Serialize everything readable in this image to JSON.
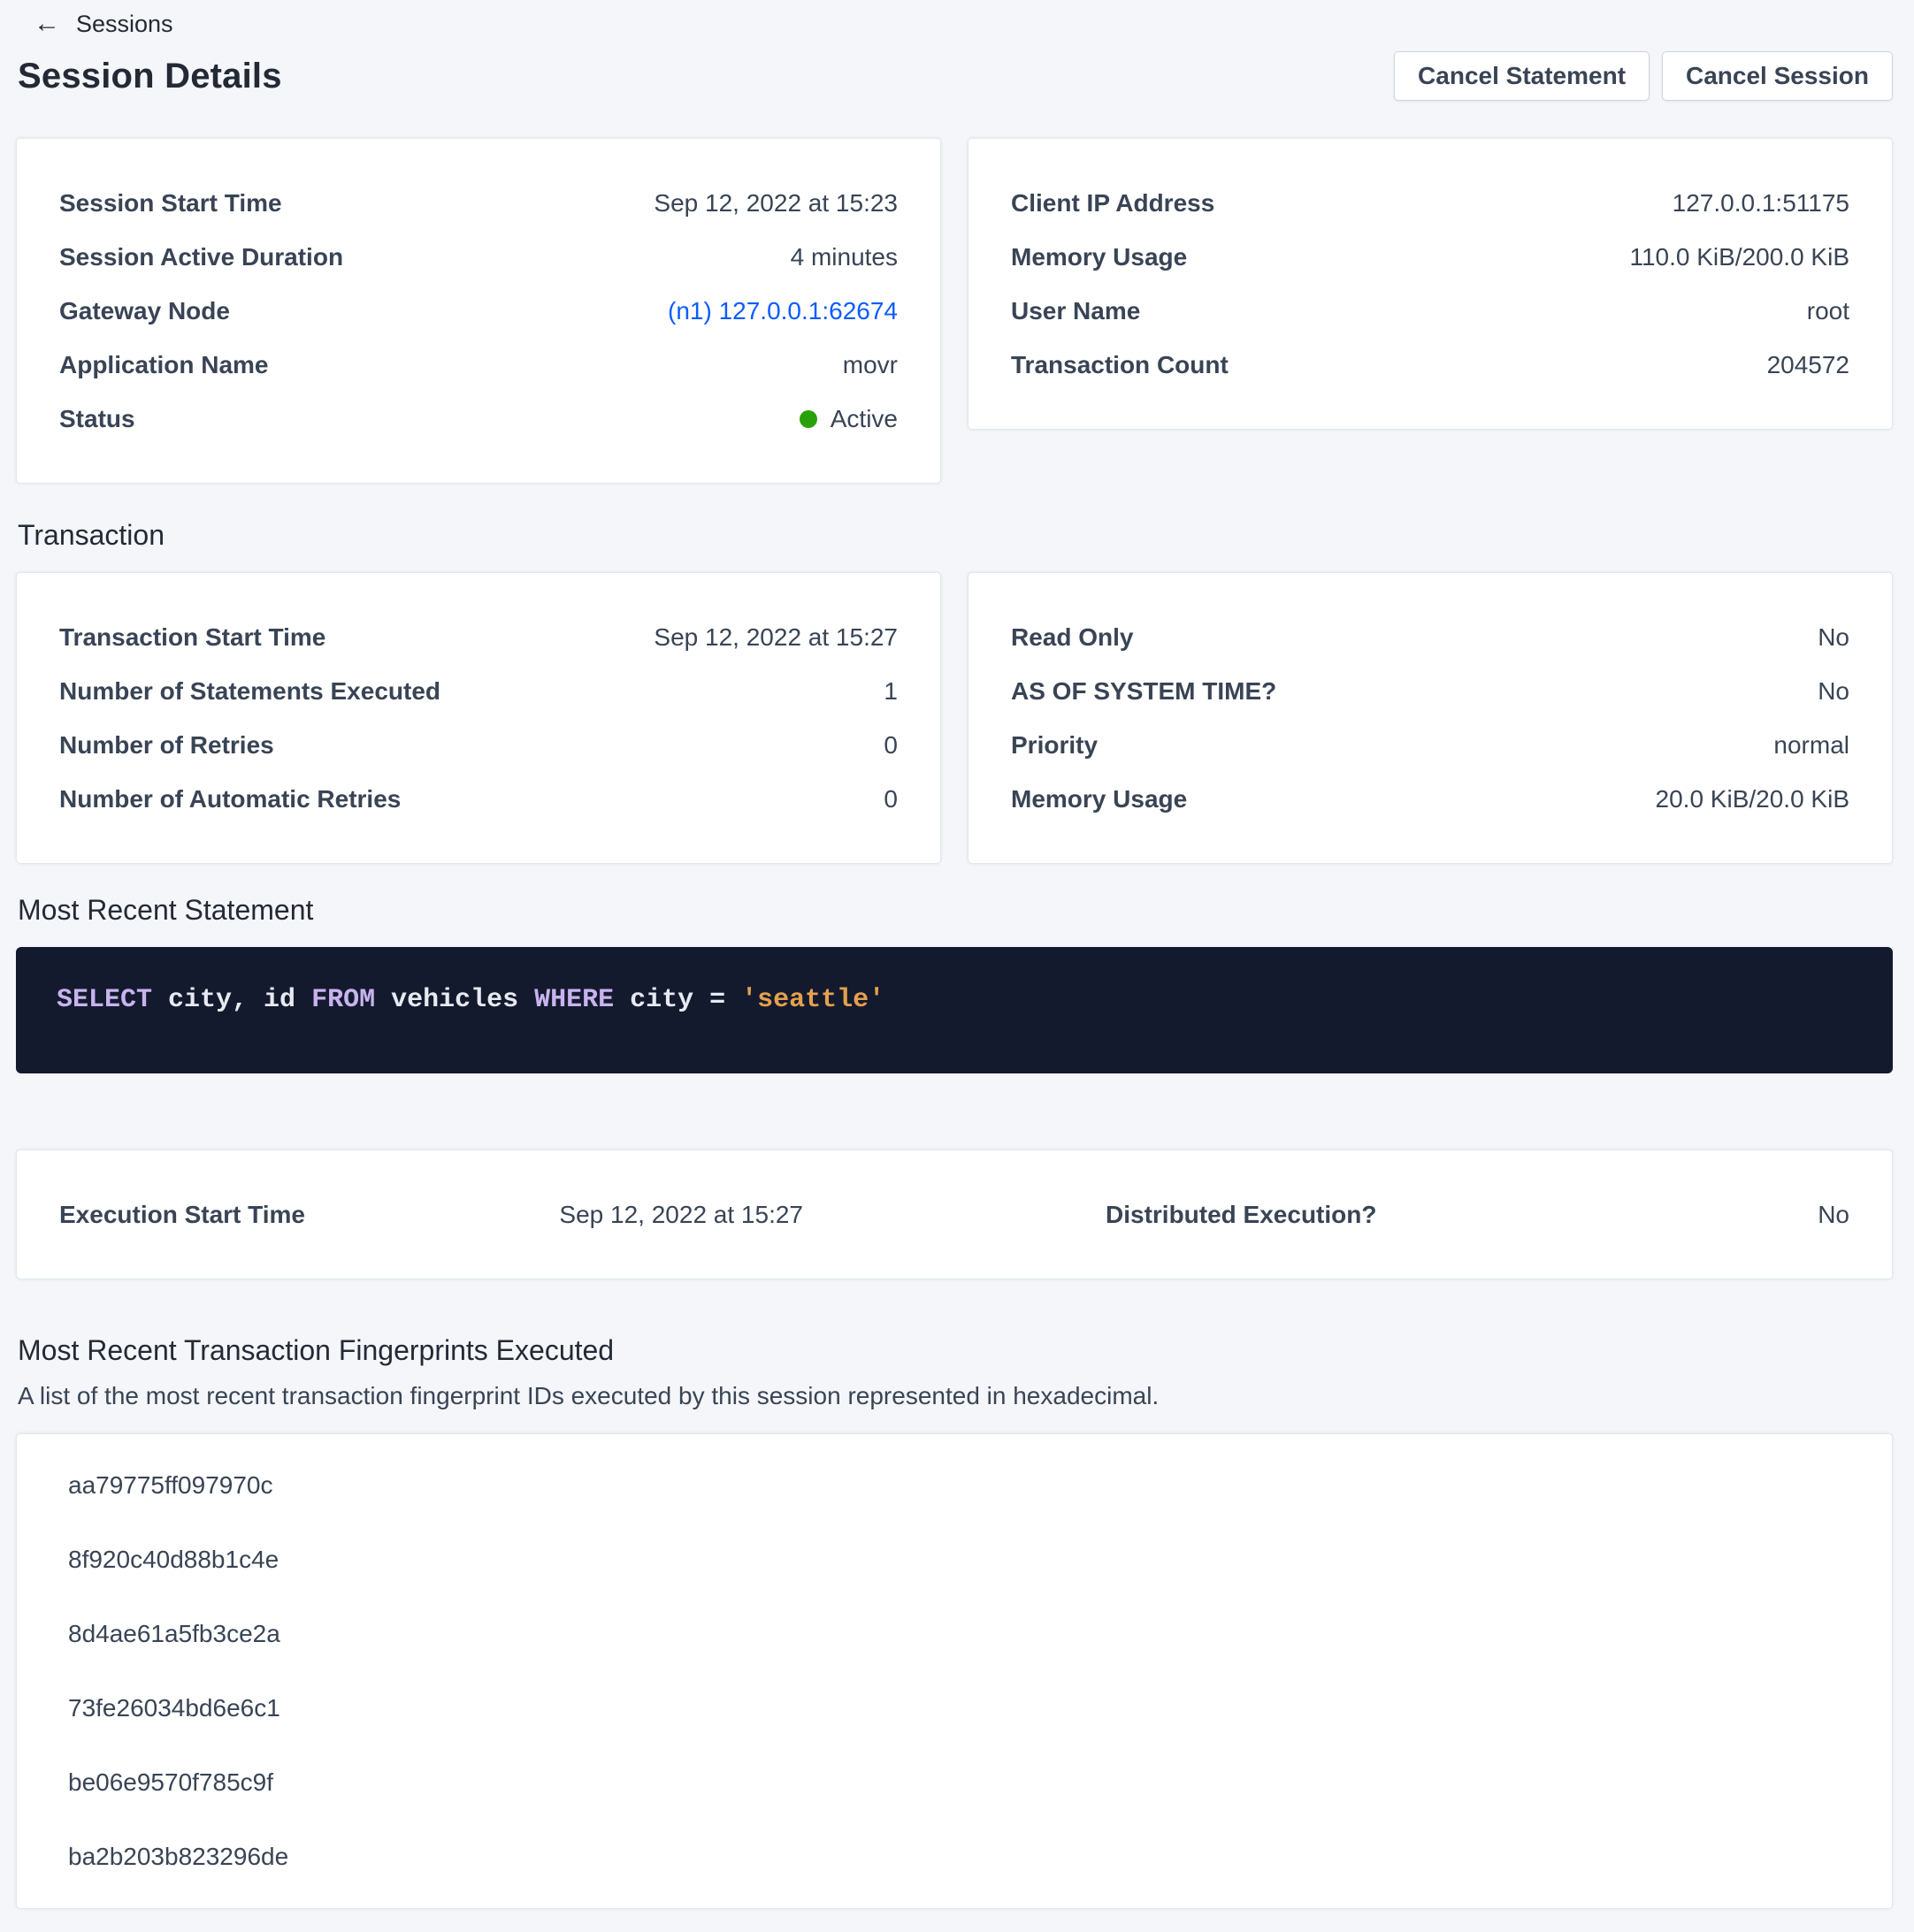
{
  "header": {
    "back_label": "Sessions",
    "title": "Session Details",
    "cancel_statement_label": "Cancel Statement",
    "cancel_session_label": "Cancel Session"
  },
  "session_summary": {
    "left": {
      "rows": [
        {
          "label": "Session Start Time",
          "value": "Sep 12, 2022 at 15:23"
        },
        {
          "label": "Session Active Duration",
          "value": "4 minutes"
        },
        {
          "label": "Gateway Node",
          "value": "(n1) 127.0.0.1:62674"
        },
        {
          "label": "Application Name",
          "value": "movr"
        },
        {
          "label": "Status",
          "value": "Active"
        }
      ]
    },
    "right": {
      "rows": [
        {
          "label": "Client IP Address",
          "value": "127.0.0.1:51175"
        },
        {
          "label": "Memory Usage",
          "value": "110.0 KiB/200.0 KiB"
        },
        {
          "label": "User Name",
          "value": "root"
        },
        {
          "label": "Transaction Count",
          "value": "204572"
        }
      ]
    }
  },
  "transaction": {
    "heading": "Transaction",
    "left": {
      "rows": [
        {
          "label": "Transaction Start Time",
          "value": "Sep 12, 2022 at 15:27"
        },
        {
          "label": "Number of Statements Executed",
          "value": "1"
        },
        {
          "label": "Number of Retries",
          "value": "0"
        },
        {
          "label": "Number of Automatic Retries",
          "value": "0"
        }
      ]
    },
    "right": {
      "rows": [
        {
          "label": "Read Only",
          "value": "No"
        },
        {
          "label": "AS OF SYSTEM TIME?",
          "value": "No"
        },
        {
          "label": "Priority",
          "value": "normal"
        },
        {
          "label": "Memory Usage",
          "value": "20.0 KiB/20.0 KiB"
        }
      ]
    }
  },
  "statement": {
    "heading": "Most Recent Statement",
    "sql_text": "SELECT city, id FROM vehicles WHERE city = 'seattle'",
    "tokens": [
      {
        "text": "SELECT",
        "type": "keyword"
      },
      {
        "text": " city, id ",
        "type": "plain"
      },
      {
        "text": "FROM",
        "type": "keyword"
      },
      {
        "text": " vehicles ",
        "type": "plain"
      },
      {
        "text": "WHERE",
        "type": "keyword"
      },
      {
        "text": " city = ",
        "type": "plain"
      },
      {
        "text": "'seattle'",
        "type": "string"
      }
    ]
  },
  "execution": {
    "rows": [
      {
        "label": "Execution Start Time",
        "value": "Sep 12, 2022 at 15:27"
      },
      {
        "label": "Distributed Execution?",
        "value": "No"
      }
    ]
  },
  "fingerprints": {
    "heading": "Most Recent Transaction Fingerprints Executed",
    "description": "A list of the most recent transaction fingerprint IDs executed by this session represented in hexadecimal.",
    "items": [
      "aa79775ff097970c",
      "8f920c40d88b1c4e",
      "8d4ae61a5fb3ce2a",
      "73fe26034bd6e6c1",
      "be06e9570f785c9f",
      "ba2b203b823296de"
    ]
  },
  "status_indicator": {
    "state": "Active",
    "color": "#2aa10a"
  },
  "colors": {
    "page_bg": "#f4f6fa",
    "link_blue": "#0b5cff",
    "status_green": "#2aa10a",
    "code_bg": "#141a2d",
    "code_keyword": "#c8b3f0",
    "code_plain": "#e7eaf3",
    "code_string": "#e5a04e"
  }
}
